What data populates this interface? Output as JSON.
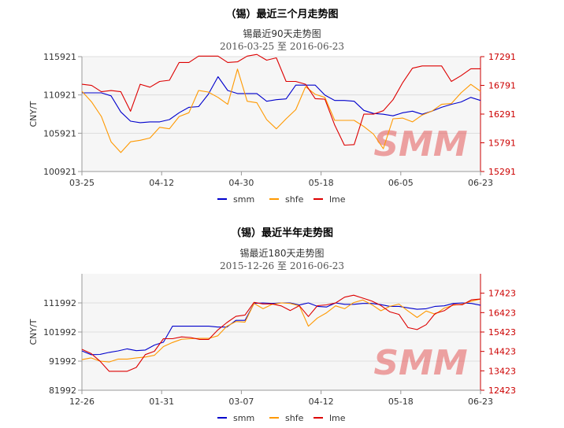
{
  "chart_data": [
    {
      "type": "line",
      "title": "（锡）最近三个月走势图",
      "subtitle": "锡最近90天走势图",
      "date_from": "2016-03-25",
      "date_sep": "至",
      "date_to": "2016-06-23",
      "ylabel": "CNY/T",
      "watermark": "SMM",
      "x_ticks": [
        "03-25",
        "04-12",
        "04-30",
        "05-18",
        "06-05",
        "06-23"
      ],
      "left_axis": {
        "min": 100921,
        "max": 115921,
        "ticks": [
          "100921",
          "105921",
          "110921",
          "115921"
        ]
      },
      "right_axis": {
        "min": 15291,
        "max": 17291,
        "ticks": [
          "15291",
          "15791",
          "16291",
          "16791",
          "17291"
        ]
      },
      "grid": true,
      "legend_position": "bottom",
      "series": [
        {
          "name": "smm",
          "axis": "left",
          "color": "#0000cc",
          "values": [
            111200,
            111200,
            111200,
            110800,
            108700,
            107500,
            107300,
            107400,
            107400,
            107700,
            108600,
            109300,
            109400,
            111000,
            113300,
            111500,
            111100,
            111100,
            111100,
            110100,
            110300,
            110400,
            112200,
            112200,
            112200,
            110900,
            110200,
            110200,
            110100,
            108900,
            108500,
            108400,
            108200,
            108600,
            108800,
            108400,
            108800,
            109300,
            109700,
            110000,
            110600,
            110200
          ]
        },
        {
          "name": "shfe",
          "axis": "left",
          "color": "#ff9900",
          "values": [
            111400,
            110000,
            108100,
            104800,
            103400,
            104800,
            105000,
            105300,
            106700,
            106500,
            108100,
            108600,
            111500,
            111300,
            110600,
            109700,
            114300,
            110100,
            109900,
            107700,
            106500,
            107800,
            109000,
            112000,
            111000,
            110600,
            107600,
            107600,
            107600,
            106800,
            105800,
            103900,
            107800,
            107900,
            107400,
            108300,
            108800,
            109700,
            109800,
            111200,
            112300,
            111400
          ]
        },
        {
          "name": "lme",
          "axis": "right",
          "color": "#dd0000",
          "values": [
            16810,
            16790,
            16680,
            16700,
            16680,
            16340,
            16810,
            16760,
            16860,
            16880,
            17190,
            17190,
            17300,
            17300,
            17300,
            17190,
            17200,
            17300,
            17330,
            17230,
            17270,
            16860,
            16860,
            16810,
            16560,
            16550,
            16100,
            15750,
            15760,
            16290,
            16290,
            16350,
            16540,
            16840,
            17090,
            17130,
            17130,
            17130,
            16860,
            16960,
            17080,
            17080
          ]
        }
      ]
    },
    {
      "type": "line",
      "title": "（锡）最近半年走势图",
      "subtitle": "锡最近180天走势图",
      "date_from": "2015-12-26",
      "date_sep": "至",
      "date_to": "2016-06-23",
      "ylabel": "CNY/T",
      "watermark": "SMM",
      "x_ticks": [
        "12-26",
        "01-31",
        "03-07",
        "04-12",
        "05-18",
        "06-23"
      ],
      "left_axis": {
        "min": 81992,
        "max": 121992,
        "ticks": [
          "81992",
          "91992",
          "101992",
          "111992"
        ]
      },
      "right_axis": {
        "min": 12423,
        "max": 18423,
        "ticks": [
          "12423",
          "13423",
          "14423",
          "15423",
          "16423",
          "17423"
        ]
      },
      "grid": true,
      "legend_position": "bottom",
      "series": [
        {
          "name": "smm",
          "axis": "left",
          "color": "#0000cc",
          "values": [
            95500,
            94200,
            94300,
            95000,
            95500,
            96200,
            95600,
            95800,
            97500,
            98500,
            104000,
            104000,
            104000,
            104000,
            104000,
            103700,
            103700,
            106000,
            106000,
            111800,
            112000,
            111800,
            112000,
            112000,
            111300,
            112000,
            110800,
            110600,
            112000,
            111500,
            111500,
            111800,
            111800,
            111400,
            110800,
            110800,
            110300,
            109800,
            110000,
            110800,
            111000,
            111800,
            112000,
            111800,
            111200
          ]
        },
        {
          "name": "shfe",
          "axis": "left",
          "color": "#ff9900",
          "values": [
            92500,
            93100,
            92000,
            91700,
            92700,
            92700,
            93100,
            93400,
            94000,
            97000,
            98400,
            99500,
            99700,
            99800,
            99800,
            100700,
            104000,
            105600,
            105400,
            111800,
            110000,
            111500,
            112000,
            111800,
            111000,
            104000,
            106800,
            108600,
            111000,
            110000,
            112100,
            113000,
            111400,
            109300,
            110800,
            111600,
            109200,
            107000,
            109200,
            108100,
            110200,
            111200,
            111600,
            112600,
            113300
          ]
        },
        {
          "name": "lme",
          "axis": "right",
          "color": "#dd0000",
          "values": [
            14530,
            14320,
            13920,
            13400,
            13400,
            13400,
            13600,
            14260,
            14430,
            15080,
            15080,
            15170,
            15140,
            15040,
            15040,
            15530,
            15910,
            16230,
            16300,
            16950,
            16870,
            16870,
            16770,
            16530,
            16780,
            16220,
            16780,
            16820,
            16920,
            17220,
            17320,
            17170,
            17020,
            16790,
            16460,
            16330,
            15650,
            15550,
            15800,
            16380,
            16520,
            16840,
            16830,
            17080,
            17120
          ]
        }
      ]
    }
  ]
}
